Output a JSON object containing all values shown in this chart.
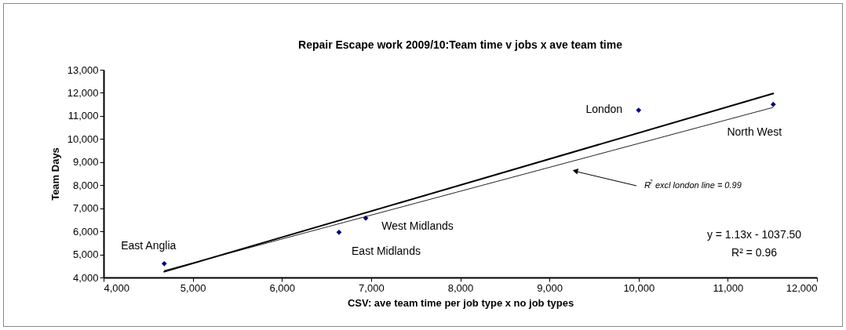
{
  "chart_data": {
    "type": "scatter",
    "title": "Repair Escape work 2009/10:Team time v jobs x ave team time",
    "xlabel": "CSV: ave team time per job type x no job types",
    "ylabel": "Team Days",
    "series": [
      {
        "color": "#000080",
        "marker": "diamond",
        "x": [
          4680,
          6640,
          6940,
          10000,
          11510
        ],
        "values": [
          4600,
          5960,
          6570,
          11250,
          11500
        ],
        "value_labels": [
          "East Anglia",
          "East Midlands",
          "West Midlands",
          "London",
          "North West"
        ]
      },
      {
        "type": "line",
        "color": "#000000",
        "line_style": "solid",
        "x": [
          4680,
          11510
        ],
        "values": [
          4250,
          11970
        ]
      },
      {
        "type": "line",
        "color": "#000000",
        "line_style": "dotted",
        "x": [
          4680,
          11510
        ],
        "values": [
          4300,
          11370
        ]
      }
    ],
    "xlim": [
      4000,
      12000
    ],
    "ylim": [
      4000,
      13000
    ],
    "xticks": [
      {
        "value": 4000,
        "label": "4,000"
      },
      {
        "value": 5000,
        "label": "5,000"
      },
      {
        "value": 6000,
        "label": "6,000"
      },
      {
        "value": 7000,
        "label": "7,000"
      },
      {
        "value": 8000,
        "label": "8,000"
      },
      {
        "value": 9000,
        "label": "9,000"
      },
      {
        "value": 10000,
        "label": "10,000"
      },
      {
        "value": 11000,
        "label": "11,000"
      },
      {
        "value": 12000,
        "label": "12,000"
      }
    ],
    "yticks": [
      {
        "value": 4000,
        "label": "4,000"
      },
      {
        "value": 5000,
        "label": "5,000"
      },
      {
        "value": 6000,
        "label": "6,000"
      },
      {
        "value": 7000,
        "label": "7,000"
      },
      {
        "value": 8000,
        "label": "8,000"
      },
      {
        "value": 9000,
        "label": "9,000"
      },
      {
        "value": 10000,
        "label": "10,000"
      },
      {
        "value": 11000,
        "label": "11,000"
      },
      {
        "value": 12000,
        "label": "12,000"
      },
      {
        "value": 13000,
        "label": "13,000"
      }
    ],
    "annotations": [
      "y = 1.13x  - 1037.50",
      "R² = 0.96",
      "R$^{2}$ excl london line = 0.99"
    ],
    "grid": false
  }
}
